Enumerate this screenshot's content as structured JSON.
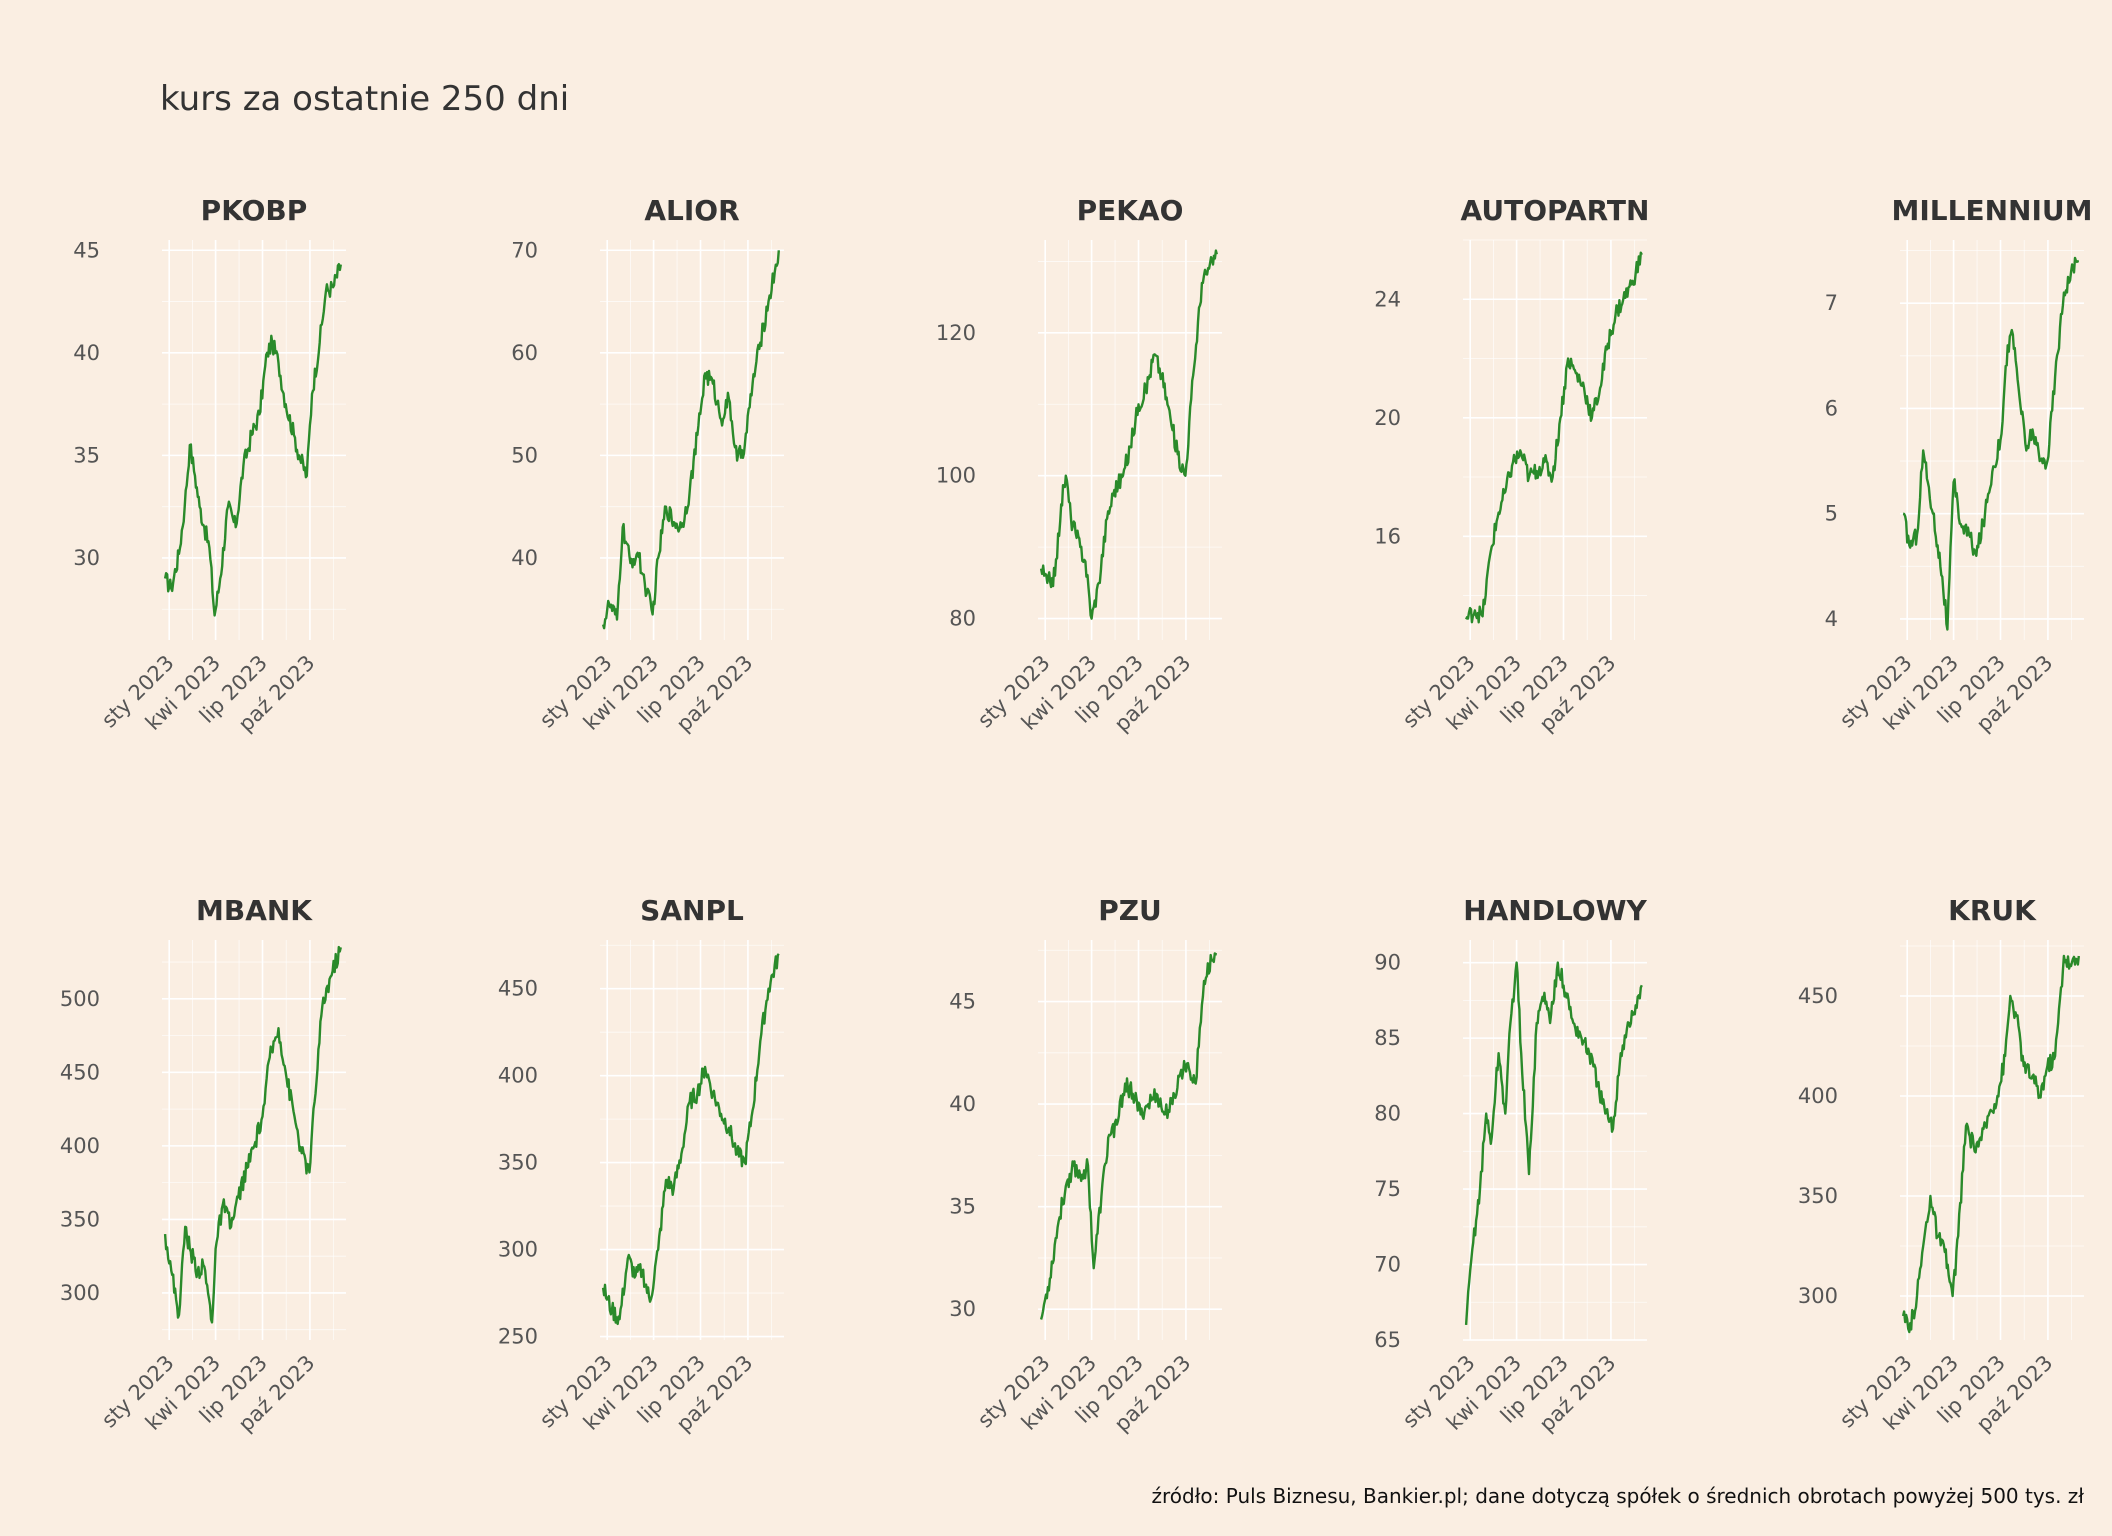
{
  "chart_data": {
    "type": "line",
    "title": "kurs za ostatnie 250 dni",
    "caption": "źródło: Puls Biznesu, Bankier.pl; dane dotyczą spółek o średnich obrotach powyżej 500 tys. zł",
    "x_range": [
      "2022-12-18",
      "2023-12-10"
    ],
    "x_ticks": [
      {
        "date": "2023-01-01",
        "label": "sty 2023"
      },
      {
        "date": "2023-04-01",
        "label": "kwi 2023"
      },
      {
        "date": "2023-07-01",
        "label": "lip 2023"
      },
      {
        "date": "2023-10-01",
        "label": "paź 2023"
      }
    ],
    "line_color": "#2A8A2A",
    "background": "#FAEEE2",
    "grid": true,
    "facets": [
      {
        "name": "PKOBP",
        "ylim": [
          26,
          45.5
        ],
        "y_ticks": [
          30,
          35,
          40,
          45
        ],
        "x": [
          "2022-12-24",
          "2023-01-05",
          "2023-01-20",
          "2023-01-31",
          "2023-02-10",
          "2023-02-20",
          "2023-03-01",
          "2023-03-10",
          "2023-03-20",
          "2023-03-30",
          "2023-04-10",
          "2023-04-25",
          "2023-05-10",
          "2023-05-25",
          "2023-06-10",
          "2023-06-25",
          "2023-07-10",
          "2023-07-20",
          "2023-08-01",
          "2023-08-15",
          "2023-08-31",
          "2023-09-10",
          "2023-09-25",
          "2023-10-05",
          "2023-10-20",
          "2023-11-01",
          "2023-11-15",
          "2023-11-30"
        ],
        "y": [
          29.0,
          28.5,
          30.2,
          32.5,
          35.5,
          34.0,
          32.5,
          31.5,
          30.5,
          27.2,
          29.0,
          32.5,
          31.5,
          34.5,
          36.0,
          37.0,
          40.0,
          40.5,
          39.5,
          37.5,
          36.0,
          35.0,
          34.0,
          38.0,
          40.5,
          43.0,
          43.2,
          44.3
        ]
      },
      {
        "name": "ALIOR",
        "ylim": [
          32,
          71
        ],
        "y_ticks": [
          40,
          50,
          60,
          70
        ],
        "x": [
          "2022-12-24",
          "2023-01-05",
          "2023-01-20",
          "2023-01-31",
          "2023-02-15",
          "2023-03-01",
          "2023-03-15",
          "2023-03-30",
          "2023-04-10",
          "2023-04-25",
          "2023-05-10",
          "2023-05-25",
          "2023-06-10",
          "2023-06-25",
          "2023-07-10",
          "2023-07-25",
          "2023-08-10",
          "2023-08-25",
          "2023-09-10",
          "2023-09-25",
          "2023-10-10",
          "2023-10-25",
          "2023-11-10",
          "2023-11-30"
        ],
        "y": [
          33.5,
          35.5,
          34.0,
          43.0,
          39.5,
          40.5,
          37.5,
          34.5,
          40.0,
          45.0,
          43.5,
          43.0,
          46.5,
          52.0,
          58.0,
          57.0,
          53.5,
          55.5,
          49.5,
          51.0,
          57.0,
          61.0,
          65.0,
          70.0
        ]
      },
      {
        "name": "PEKAO",
        "ylim": [
          77,
          133
        ],
        "y_ticks": [
          80,
          100,
          120
        ],
        "x": [
          "2022-12-24",
          "2023-01-05",
          "2023-01-20",
          "2023-02-01",
          "2023-02-10",
          "2023-02-20",
          "2023-03-01",
          "2023-03-10",
          "2023-03-20",
          "2023-04-01",
          "2023-04-15",
          "2023-05-01",
          "2023-05-15",
          "2023-06-01",
          "2023-06-15",
          "2023-07-01",
          "2023-07-15",
          "2023-08-01",
          "2023-08-15",
          "2023-09-01",
          "2023-09-15",
          "2023-09-30",
          "2023-10-15",
          "2023-11-01",
          "2023-11-15",
          "2023-11-30"
        ],
        "y": [
          87,
          85,
          86,
          96,
          100,
          94,
          92,
          90,
          88,
          80,
          85,
          94,
          98,
          100,
          104,
          110,
          112,
          117,
          114,
          108,
          103,
          100,
          114,
          127,
          129,
          131
        ]
      },
      {
        "name": "AUTOPARTN",
        "ylim": [
          12.5,
          26
        ],
        "y_ticks": [
          16,
          20,
          24
        ],
        "x": [
          "2022-12-24",
          "2023-01-10",
          "2023-01-25",
          "2023-02-10",
          "2023-02-25",
          "2023-03-10",
          "2023-03-25",
          "2023-04-10",
          "2023-04-25",
          "2023-05-10",
          "2023-05-25",
          "2023-06-10",
          "2023-06-25",
          "2023-07-10",
          "2023-07-25",
          "2023-08-10",
          "2023-08-25",
          "2023-09-10",
          "2023-09-25",
          "2023-10-10",
          "2023-10-25",
          "2023-11-10",
          "2023-11-30"
        ],
        "y": [
          13.2,
          13.5,
          13.3,
          15.5,
          16.8,
          17.5,
          18.5,
          18.8,
          18.0,
          18.2,
          18.5,
          18.0,
          20.0,
          22.0,
          21.5,
          21.0,
          20.0,
          21.0,
          22.5,
          23.5,
          24.0,
          24.5,
          25.5
        ]
      },
      {
        "name": "MILLENNIUM",
        "ylim": [
          3.8,
          7.6
        ],
        "y_ticks": [
          4,
          5,
          6,
          7
        ],
        "x": [
          "2022-12-24",
          "2023-01-05",
          "2023-01-20",
          "2023-02-01",
          "2023-02-10",
          "2023-02-20",
          "2023-03-01",
          "2023-03-10",
          "2023-03-20",
          "2023-04-01",
          "2023-04-15",
          "2023-05-01",
          "2023-05-15",
          "2023-06-01",
          "2023-06-15",
          "2023-07-01",
          "2023-07-15",
          "2023-07-25",
          "2023-08-05",
          "2023-08-20",
          "2023-09-01",
          "2023-09-15",
          "2023-09-30",
          "2023-10-15",
          "2023-11-01",
          "2023-11-15",
          "2023-11-30"
        ],
        "y": [
          5.0,
          4.7,
          4.8,
          5.6,
          5.3,
          5.0,
          4.7,
          4.4,
          3.9,
          5.3,
          4.9,
          4.8,
          4.6,
          5.0,
          5.4,
          5.7,
          6.6,
          6.7,
          6.2,
          5.6,
          5.8,
          5.5,
          5.5,
          6.3,
          7.1,
          7.3,
          7.4
        ]
      },
      {
        "name": "MBANK",
        "ylim": [
          268,
          540
        ],
        "y_ticks": [
          300,
          350,
          400,
          450,
          500
        ],
        "x": [
          "2022-12-24",
          "2023-01-05",
          "2023-01-20",
          "2023-02-01",
          "2023-02-10",
          "2023-02-25",
          "2023-03-10",
          "2023-03-25",
          "2023-04-01",
          "2023-04-15",
          "2023-05-01",
          "2023-05-15",
          "2023-06-01",
          "2023-06-15",
          "2023-07-01",
          "2023-07-15",
          "2023-08-01",
          "2023-08-15",
          "2023-09-01",
          "2023-09-15",
          "2023-09-30",
          "2023-10-10",
          "2023-10-25",
          "2023-11-10",
          "2023-11-30"
        ],
        "y": [
          340,
          315,
          285,
          345,
          330,
          315,
          318,
          280,
          330,
          360,
          345,
          365,
          385,
          400,
          420,
          460,
          480,
          450,
          420,
          395,
          382,
          430,
          495,
          515,
          535
        ]
      },
      {
        "name": "SANPL",
        "ylim": [
          248,
          478
        ],
        "y_ticks": [
          250,
          300,
          350,
          400,
          450
        ],
        "x": [
          "2022-12-24",
          "2023-01-10",
          "2023-01-25",
          "2023-02-10",
          "2023-02-25",
          "2023-03-10",
          "2023-03-25",
          "2023-04-10",
          "2023-04-25",
          "2023-05-10",
          "2023-05-25",
          "2023-06-10",
          "2023-06-25",
          "2023-07-10",
          "2023-07-25",
          "2023-08-10",
          "2023-08-25",
          "2023-09-10",
          "2023-09-25",
          "2023-10-10",
          "2023-10-25",
          "2023-11-10",
          "2023-11-30"
        ],
        "y": [
          278,
          265,
          260,
          295,
          285,
          288,
          270,
          300,
          340,
          335,
          355,
          385,
          390,
          405,
          390,
          378,
          370,
          355,
          350,
          380,
          420,
          450,
          470
        ]
      },
      {
        "name": "PZU",
        "ylim": [
          28.5,
          48
        ],
        "y_ticks": [
          30,
          35,
          40,
          45
        ],
        "x": [
          "2022-12-24",
          "2023-01-10",
          "2023-01-25",
          "2023-02-10",
          "2023-02-25",
          "2023-03-10",
          "2023-03-25",
          "2023-04-05",
          "2023-04-20",
          "2023-05-05",
          "2023-05-20",
          "2023-06-05",
          "2023-06-20",
          "2023-07-05",
          "2023-07-20",
          "2023-08-05",
          "2023-08-20",
          "2023-09-05",
          "2023-09-20",
          "2023-10-05",
          "2023-10-20",
          "2023-11-05",
          "2023-11-20",
          "2023-11-30"
        ],
        "y": [
          29.5,
          31.5,
          34.0,
          36.0,
          37.0,
          36.5,
          37.0,
          32.0,
          35.5,
          38.5,
          39.0,
          41.0,
          40.5,
          39.5,
          40.0,
          40.5,
          39.5,
          40.0,
          41.5,
          42.0,
          41.0,
          46.0,
          47.0,
          47.3
        ]
      },
      {
        "name": "HANDLOWY",
        "ylim": [
          65,
          91.5
        ],
        "y_ticks": [
          65,
          70,
          75,
          80,
          85,
          90
        ],
        "x": [
          "2022-12-24",
          "2023-01-05",
          "2023-01-20",
          "2023-02-01",
          "2023-02-10",
          "2023-02-25",
          "2023-03-10",
          "2023-03-20",
          "2023-04-01",
          "2023-04-10",
          "2023-04-25",
          "2023-05-10",
          "2023-05-25",
          "2023-06-05",
          "2023-06-20",
          "2023-07-05",
          "2023-07-20",
          "2023-08-05",
          "2023-08-20",
          "2023-09-05",
          "2023-09-20",
          "2023-10-05",
          "2023-10-20",
          "2023-11-05",
          "2023-11-20",
          "2023-11-30"
        ],
        "y": [
          66,
          71,
          75,
          80,
          78,
          84,
          80,
          86,
          90,
          84,
          76,
          86,
          88,
          86,
          90,
          88,
          86,
          85,
          84,
          82,
          80,
          79,
          84,
          86,
          87,
          88.5
        ]
      },
      {
        "name": "KRUK",
        "ylim": [
          278,
          478
        ],
        "y_ticks": [
          300,
          350,
          400,
          450
        ],
        "x": [
          "2022-12-24",
          "2023-01-05",
          "2023-01-20",
          "2023-02-01",
          "2023-02-15",
          "2023-03-01",
          "2023-03-15",
          "2023-03-30",
          "2023-04-10",
          "2023-04-25",
          "2023-05-10",
          "2023-05-25",
          "2023-06-10",
          "2023-06-25",
          "2023-07-10",
          "2023-07-20",
          "2023-08-01",
          "2023-08-15",
          "2023-09-01",
          "2023-09-15",
          "2023-09-30",
          "2023-10-15",
          "2023-11-01",
          "2023-11-15",
          "2023-11-30"
        ],
        "y": [
          290,
          282,
          300,
          325,
          350,
          330,
          322,
          300,
          330,
          385,
          375,
          378,
          392,
          400,
          420,
          450,
          440,
          415,
          410,
          400,
          415,
          420,
          470,
          465,
          470
        ]
      }
    ]
  }
}
